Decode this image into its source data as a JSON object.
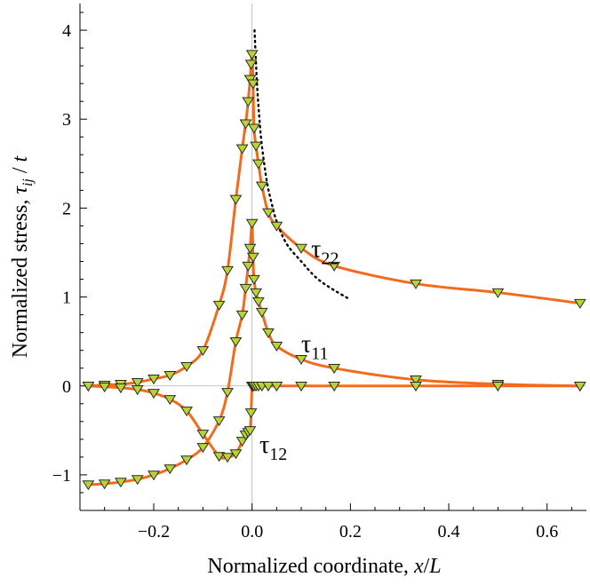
{
  "chart_data": {
    "type": "line",
    "xlabel_parts": [
      "Normalized coordinate, ",
      "x",
      "/",
      "L"
    ],
    "ylabel_parts": [
      "Normalized stress,  ",
      "τ",
      "ij",
      " / ",
      "t"
    ],
    "xlim": [
      -0.35,
      0.68
    ],
    "ylim": [
      -1.4,
      4.3
    ],
    "x_ticks": [
      -0.2,
      0.0,
      0.2,
      0.4,
      0.6
    ],
    "x_tick_labels": [
      "−0.2",
      "0.0",
      "0.2",
      "0.4",
      "0.6"
    ],
    "y_ticks": [
      -1,
      0,
      1,
      2,
      3,
      4
    ],
    "y_tick_labels": [
      "−1",
      "0",
      "1",
      "2",
      "3",
      "4"
    ],
    "series": [
      {
        "name": "τ22",
        "label": {
          "main": "τ",
          "sub": "22",
          "at": [
            0.12,
            1.45
          ]
        },
        "color": "#f26b1d",
        "x": [
          -0.333,
          -0.3,
          -0.267,
          -0.233,
          -0.2,
          -0.167,
          -0.133,
          -0.1,
          -0.067,
          -0.05,
          -0.033,
          -0.02,
          -0.013,
          -0.008,
          -0.004,
          -0.002,
          0.0,
          0.002,
          0.004,
          0.008,
          0.013,
          0.02,
          0.033,
          0.05,
          0.1,
          0.167,
          0.333,
          0.5,
          0.667
        ],
        "y": [
          0.0,
          0.01,
          0.02,
          0.04,
          0.08,
          0.12,
          0.22,
          0.4,
          0.91,
          1.3,
          2.1,
          2.67,
          2.95,
          3.2,
          3.45,
          3.62,
          3.73,
          3.4,
          2.9,
          2.7,
          2.5,
          2.25,
          1.95,
          1.8,
          1.55,
          1.35,
          1.15,
          1.05,
          0.93
        ]
      },
      {
        "name": "τ11",
        "label": {
          "main": "τ",
          "sub": "11",
          "at": [
            0.1,
            0.38
          ]
        },
        "color": "#f26b1d",
        "x": [
          -0.333,
          -0.3,
          -0.267,
          -0.233,
          -0.2,
          -0.167,
          -0.133,
          -0.1,
          -0.067,
          -0.05,
          -0.033,
          -0.02,
          -0.013,
          -0.008,
          -0.004,
          0.0,
          0.002,
          0.004,
          0.008,
          0.013,
          0.02,
          0.033,
          0.05,
          0.1,
          0.167,
          0.333,
          0.5,
          0.667
        ],
        "y": [
          -1.11,
          -1.1,
          -1.08,
          -1.05,
          -1.0,
          -0.93,
          -0.83,
          -0.69,
          -0.39,
          -0.07,
          0.5,
          0.8,
          1.1,
          1.35,
          1.55,
          1.83,
          1.45,
          1.2,
          1.05,
          0.95,
          0.83,
          0.6,
          0.45,
          0.3,
          0.2,
          0.07,
          0.02,
          0.0
        ]
      },
      {
        "name": "τ12",
        "label": {
          "main": "τ",
          "sub": "12",
          "at": [
            0.015,
            -0.75
          ]
        },
        "color": "#f26b1d",
        "x": [
          -0.333,
          -0.3,
          -0.267,
          -0.233,
          -0.2,
          -0.167,
          -0.133,
          -0.1,
          -0.067,
          -0.05,
          -0.033,
          -0.02,
          -0.013,
          -0.008,
          -0.004,
          -0.002,
          0.0,
          0.002,
          0.004,
          0.008,
          0.013,
          0.02,
          0.033,
          0.05,
          0.1,
          0.167,
          0.333,
          0.5,
          0.667
        ],
        "y": [
          0.0,
          -0.01,
          -0.02,
          -0.04,
          -0.08,
          -0.15,
          -0.28,
          -0.54,
          -0.79,
          -0.8,
          -0.76,
          -0.62,
          -0.55,
          -0.52,
          -0.5,
          -0.3,
          0.0,
          0.0,
          0.0,
          0.0,
          0.0,
          0.0,
          0.0,
          0.0,
          0.0,
          0.0,
          0.0,
          0.0,
          0.0
        ]
      }
    ],
    "reference_curve": {
      "style": "dotted",
      "color": "#000000",
      "x": [
        0.005,
        0.01,
        0.015,
        0.02,
        0.03,
        0.04,
        0.05,
        0.07,
        0.1,
        0.13,
        0.16,
        0.2
      ],
      "y": [
        4.0,
        3.4,
        3.0,
        2.7,
        2.3,
        2.05,
        1.85,
        1.6,
        1.4,
        1.22,
        1.1,
        0.97
      ]
    }
  }
}
